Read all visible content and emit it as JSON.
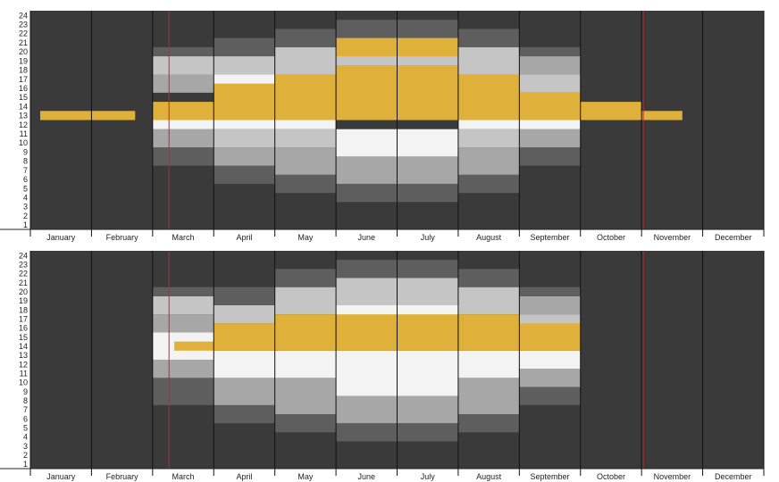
{
  "chart_data": {
    "type": "heatmap",
    "description_of_encoding": "Two stacked panels of a day-of-year (x) by hour-of-day (y) chart. Columns are months; grey bands show daylight-related shading per hour; yellow cells mark a highlighted hour each day; red vertical lines mark dates.",
    "months": [
      "January",
      "February",
      "March",
      "April",
      "May",
      "June",
      "July",
      "August",
      "September",
      "October",
      "November",
      "December"
    ],
    "hours": [
      1,
      2,
      3,
      4,
      5,
      6,
      7,
      8,
      9,
      10,
      11,
      12,
      13,
      14,
      15,
      16,
      17,
      18,
      19,
      20,
      21,
      22,
      23,
      24
    ],
    "month_days": [
      31,
      28,
      31,
      30,
      31,
      30,
      31,
      31,
      30,
      31,
      30,
      31
    ],
    "red_lines_day_of_year": [
      69,
      305
    ],
    "colors": {
      "background": "#3b3a3b",
      "night": "#3b3a3b",
      "twilight_dark": "#5f5e5f",
      "twilight_mid": "#a8a7a8",
      "twilight_light": "#c6c5c6",
      "day": "#f3f3f3",
      "highlight": "#e0b13a",
      "red_line": "#c0282a",
      "separator": "#111111"
    },
    "panels": [
      {
        "name": "top",
        "shading_by_month": [
          {
            "month": "January",
            "bands": []
          },
          {
            "month": "February",
            "bands": []
          },
          {
            "month": "March",
            "bands": [
              [
                7,
                9,
                "dark"
              ],
              [
                9,
                11,
                "mid"
              ],
              [
                11,
                12,
                "day"
              ],
              [
                15,
                17,
                "mid"
              ],
              [
                17,
                19,
                "light"
              ],
              [
                19,
                20,
                "dark"
              ]
            ]
          },
          {
            "month": "April",
            "bands": [
              [
                5,
                7,
                "dark"
              ],
              [
                7,
                9,
                "mid"
              ],
              [
                9,
                11,
                "light"
              ],
              [
                11,
                12,
                "day"
              ],
              [
                15,
                17,
                "day"
              ],
              [
                17,
                19,
                "light"
              ],
              [
                19,
                21,
                "dark"
              ]
            ]
          },
          {
            "month": "May",
            "bands": [
              [
                4,
                6,
                "dark"
              ],
              [
                6,
                9,
                "mid"
              ],
              [
                9,
                11,
                "light"
              ],
              [
                11,
                12,
                "day"
              ],
              [
                15,
                17,
                "day"
              ],
              [
                17,
                20,
                "light"
              ],
              [
                20,
                22,
                "dark"
              ]
            ]
          },
          {
            "month": "June",
            "bands": [
              [
                3,
                5,
                "dark"
              ],
              [
                5,
                8,
                "mid"
              ],
              [
                8,
                11,
                "day"
              ],
              [
                16,
                18,
                "day"
              ],
              [
                18,
                21,
                "light"
              ],
              [
                21,
                23,
                "dark"
              ]
            ]
          },
          {
            "month": "July",
            "bands": [
              [
                3,
                5,
                "dark"
              ],
              [
                5,
                8,
                "mid"
              ],
              [
                8,
                11,
                "day"
              ],
              [
                16,
                18,
                "day"
              ],
              [
                18,
                21,
                "light"
              ],
              [
                21,
                23,
                "dark"
              ]
            ]
          },
          {
            "month": "August",
            "bands": [
              [
                4,
                6,
                "dark"
              ],
              [
                6,
                9,
                "mid"
              ],
              [
                9,
                11,
                "light"
              ],
              [
                11,
                12,
                "day"
              ],
              [
                15,
                17,
                "day"
              ],
              [
                17,
                20,
                "light"
              ],
              [
                20,
                22,
                "dark"
              ]
            ]
          },
          {
            "month": "September",
            "bands": [
              [
                7,
                9,
                "dark"
              ],
              [
                9,
                11,
                "mid"
              ],
              [
                11,
                12,
                "day"
              ],
              [
                15,
                17,
                "light"
              ],
              [
                17,
                19,
                "mid"
              ],
              [
                19,
                20,
                "dark"
              ]
            ]
          },
          {
            "month": "October",
            "bands": []
          },
          {
            "month": "November",
            "bands": []
          },
          {
            "month": "December",
            "bands": []
          }
        ],
        "highlight_hours_by_month": [
          {
            "month": "January",
            "start_day": 6,
            "hour_low": 12,
            "hour_high": 13
          },
          {
            "month": "February",
            "start_day": 1,
            "end_day": 20,
            "hour_low": 12,
            "hour_high": 13
          },
          {
            "month": "March",
            "start_day": 1,
            "hour_low": 12,
            "hour_high": 14
          },
          {
            "month": "April",
            "hour_low": 12,
            "hour_high": 16
          },
          {
            "month": "May",
            "hour_low": 12,
            "hour_high": 17
          },
          {
            "month": "June",
            "hour_low": 12,
            "hour_high": 18,
            "extra_low": 19,
            "extra_high": 21
          },
          {
            "month": "July",
            "hour_low": 12,
            "hour_high": 18,
            "extra_low": 19,
            "extra_high": 21
          },
          {
            "month": "August",
            "hour_low": 12,
            "hour_high": 17
          },
          {
            "month": "September",
            "hour_low": 12,
            "hour_high": 15
          },
          {
            "month": "October",
            "hour_low": 12,
            "hour_high": 14
          },
          {
            "month": "November",
            "end_day": 20,
            "hour_low": 12,
            "hour_high": 13
          },
          {
            "month": "December",
            "hour_low": 0,
            "hour_high": 0
          }
        ]
      },
      {
        "name": "bottom",
        "shading_by_month": [
          {
            "month": "January",
            "bands": []
          },
          {
            "month": "February",
            "bands": []
          },
          {
            "month": "March",
            "bands": [
              [
                7,
                10,
                "dark"
              ],
              [
                10,
                12,
                "mid"
              ],
              [
                12,
                15,
                "day"
              ],
              [
                15,
                17,
                "mid"
              ],
              [
                17,
                19,
                "light"
              ],
              [
                19,
                20,
                "dark"
              ]
            ]
          },
          {
            "month": "April",
            "bands": [
              [
                5,
                7,
                "dark"
              ],
              [
                7,
                10,
                "mid"
              ],
              [
                10,
                13,
                "day"
              ],
              [
                16,
                18,
                "light"
              ],
              [
                18,
                20,
                "dark"
              ]
            ]
          },
          {
            "month": "May",
            "bands": [
              [
                4,
                6,
                "dark"
              ],
              [
                6,
                10,
                "mid"
              ],
              [
                10,
                13,
                "day"
              ],
              [
                17,
                20,
                "light"
              ],
              [
                20,
                22,
                "dark"
              ]
            ]
          },
          {
            "month": "June",
            "bands": [
              [
                3,
                5,
                "dark"
              ],
              [
                5,
                8,
                "mid"
              ],
              [
                8,
                13,
                "day"
              ],
              [
                16,
                18,
                "day"
              ],
              [
                18,
                21,
                "light"
              ],
              [
                21,
                23,
                "dark"
              ]
            ]
          },
          {
            "month": "July",
            "bands": [
              [
                3,
                5,
                "dark"
              ],
              [
                5,
                8,
                "mid"
              ],
              [
                8,
                13,
                "day"
              ],
              [
                16,
                18,
                "day"
              ],
              [
                18,
                21,
                "light"
              ],
              [
                21,
                23,
                "dark"
              ]
            ]
          },
          {
            "month": "August",
            "bands": [
              [
                4,
                6,
                "dark"
              ],
              [
                6,
                10,
                "mid"
              ],
              [
                10,
                13,
                "day"
              ],
              [
                17,
                20,
                "light"
              ],
              [
                20,
                22,
                "dark"
              ]
            ]
          },
          {
            "month": "September",
            "bands": [
              [
                7,
                9,
                "dark"
              ],
              [
                9,
                11,
                "mid"
              ],
              [
                11,
                13,
                "day"
              ],
              [
                14,
                15,
                "day"
              ],
              [
                15,
                17,
                "light"
              ],
              [
                17,
                19,
                "mid"
              ],
              [
                19,
                20,
                "dark"
              ]
            ]
          },
          {
            "month": "October",
            "bands": []
          },
          {
            "month": "November",
            "bands": []
          },
          {
            "month": "December",
            "bands": []
          }
        ],
        "highlight_hours_by_month": [
          {
            "month": "January",
            "hour_low": 0,
            "hour_high": 0
          },
          {
            "month": "February",
            "hour_low": 0,
            "hour_high": 0
          },
          {
            "month": "March",
            "start_day": 12,
            "hour_low": 13,
            "hour_high": 14
          },
          {
            "month": "April",
            "hour_low": 13,
            "hour_high": 16
          },
          {
            "month": "May",
            "hour_low": 13,
            "hour_high": 17
          },
          {
            "month": "June",
            "hour_low": 13,
            "hour_high": 17
          },
          {
            "month": "July",
            "hour_low": 13,
            "hour_high": 17
          },
          {
            "month": "August",
            "hour_low": 13,
            "hour_high": 17
          },
          {
            "month": "September",
            "hour_low": 13,
            "hour_high": 16
          },
          {
            "month": "October",
            "hour_low": 0,
            "hour_high": 0
          },
          {
            "month": "November",
            "hour_low": 0,
            "hour_high": 0
          },
          {
            "month": "December",
            "hour_low": 0,
            "hour_high": 0
          }
        ]
      }
    ]
  }
}
